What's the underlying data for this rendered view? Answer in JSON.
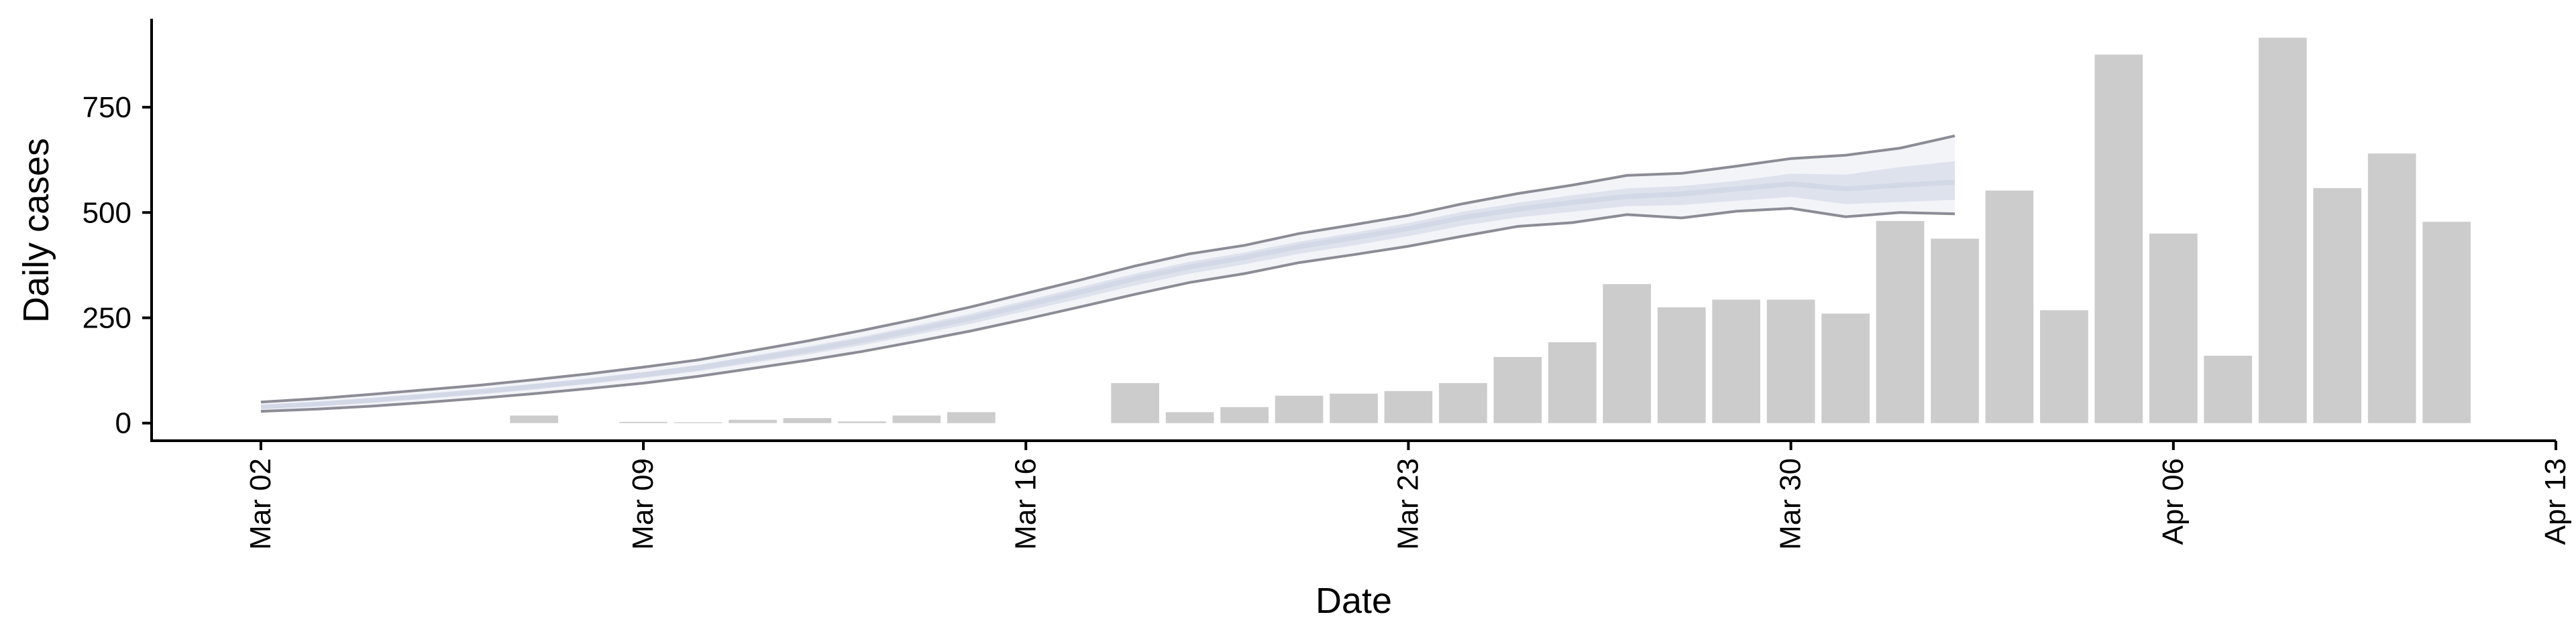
{
  "chart_data": {
    "type": "bar",
    "xlabel": "Date",
    "ylabel": "Daily cases",
    "x_ticks": [
      "Mar 02",
      "Mar 09",
      "Mar 16",
      "Mar 23",
      "Mar 30",
      "Apr 06",
      "Apr 13"
    ],
    "y_ticks": [
      "0",
      "250",
      "500",
      "750"
    ],
    "ylim": [
      -45,
      960
    ],
    "xlim": [
      "2020-02-29",
      "2020-04-13"
    ],
    "grid": false,
    "colors": {
      "bars": "#cccccc",
      "band": "#c5cbe0",
      "band_edge": "#8c8c96",
      "axis": "#000000"
    },
    "series": [
      {
        "kind": "bar",
        "x": [
          "2020-03-07",
          "2020-03-09",
          "2020-03-10",
          "2020-03-11",
          "2020-03-12",
          "2020-03-13",
          "2020-03-14",
          "2020-03-15",
          "2020-03-18",
          "2020-03-19",
          "2020-03-20",
          "2020-03-21",
          "2020-03-22",
          "2020-03-23",
          "2020-03-24",
          "2020-03-25",
          "2020-03-26",
          "2020-03-27",
          "2020-03-28",
          "2020-03-29",
          "2020-03-30",
          "2020-03-31",
          "2020-04-01",
          "2020-04-02",
          "2020-04-03",
          "2020-04-04",
          "2020-04-05",
          "2020-04-06",
          "2020-04-07",
          "2020-04-08",
          "2020-04-09",
          "2020-04-10",
          "2020-04-11"
        ],
        "values": [
          18,
          3,
          2,
          8,
          12,
          4,
          18,
          26,
          95,
          26,
          38,
          65,
          70,
          76,
          95,
          157,
          192,
          330,
          275,
          293,
          293,
          260,
          480,
          438,
          552,
          268,
          875,
          450,
          160,
          915,
          558,
          640,
          478
        ]
      },
      {
        "kind": "band",
        "x": [
          "2020-03-02",
          "2020-03-03",
          "2020-03-04",
          "2020-03-05",
          "2020-03-06",
          "2020-03-07",
          "2020-03-08",
          "2020-03-09",
          "2020-03-10",
          "2020-03-11",
          "2020-03-12",
          "2020-03-13",
          "2020-03-14",
          "2020-03-15",
          "2020-03-16",
          "2020-03-17",
          "2020-03-18",
          "2020-03-19",
          "2020-03-20",
          "2020-03-21",
          "2020-03-22",
          "2020-03-23",
          "2020-03-24",
          "2020-03-25",
          "2020-03-26",
          "2020-03-27",
          "2020-03-28",
          "2020-03-29",
          "2020-03-30",
          "2020-03-31",
          "2020-04-01",
          "2020-04-02"
        ],
        "upper": [
          50,
          58,
          68,
          79,
          90,
          103,
          117,
          133,
          150,
          172,
          195,
          220,
          247,
          276,
          308,
          340,
          373,
          402,
          422,
          450,
          471,
          493,
          521,
          545,
          565,
          588,
          593,
          610,
          628,
          636,
          653,
          682
        ],
        "upper_inner": [
          43,
          50,
          59,
          69,
          80,
          93,
          106,
          121,
          138,
          160,
          182,
          205,
          232,
          260,
          291,
          323,
          355,
          383,
          405,
          431,
          452,
          475,
          502,
          523,
          541,
          557,
          563,
          575,
          592,
          590,
          608,
          622
        ],
        "median": [
          38,
          45,
          54,
          64,
          75,
          87,
          100,
          115,
          131,
          152,
          173,
          196,
          222,
          249,
          280,
          311,
          343,
          371,
          393,
          419,
          440,
          462,
          488,
          508,
          524,
          538,
          544,
          556,
          568,
          556,
          565,
          572
        ],
        "lower_inner": [
          34,
          40,
          48,
          58,
          68,
          80,
          93,
          107,
          123,
          143,
          163,
          185,
          210,
          236,
          266,
          296,
          327,
          355,
          377,
          402,
          422,
          444,
          469,
          488,
          502,
          515,
          518,
          528,
          537,
          520,
          525,
          530
        ],
        "lower": [
          28,
          33,
          40,
          49,
          59,
          70,
          82,
          95,
          111,
          130,
          149,
          170,
          194,
          219,
          247,
          276,
          306,
          334,
          355,
          381,
          400,
          420,
          444,
          467,
          476,
          495,
          487,
          503,
          510,
          490,
          500,
          497
        ]
      }
    ]
  }
}
